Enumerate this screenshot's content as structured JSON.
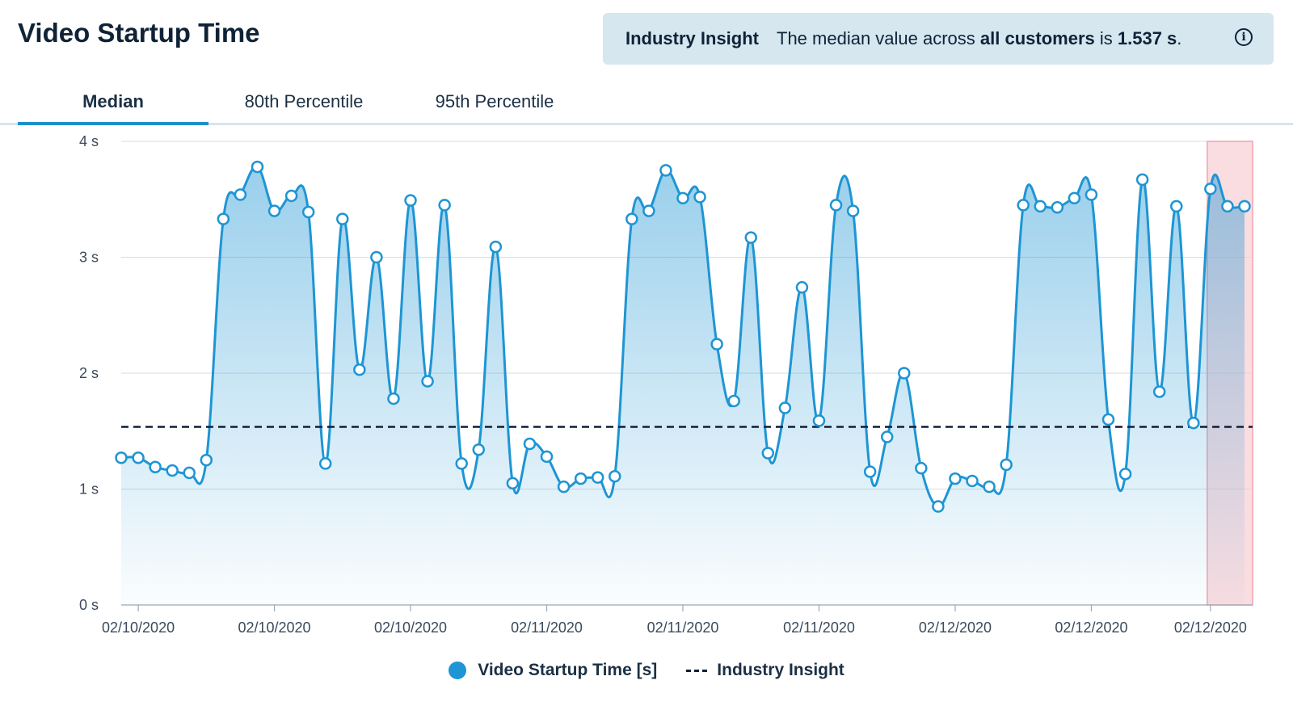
{
  "page": {
    "title": "Video Startup Time"
  },
  "insight": {
    "label": "Industry Insight",
    "text_prefix": "The median value across ",
    "text_bold": "all customers",
    "text_mid": " is ",
    "value": "1.537 s",
    "text_suffix": ".",
    "icon": "info-icon"
  },
  "tabs": [
    {
      "label": "Median",
      "active": true
    },
    {
      "label": "80th Percentile",
      "active": false
    },
    {
      "label": "95th Percentile",
      "active": false
    }
  ],
  "legend": {
    "series_label": "Video Startup Time [s]",
    "reference_label": "Industry Insight"
  },
  "colors": {
    "series": "#1e95d4",
    "reference": "#0f1f3a",
    "highlight": "#f7c6cd",
    "tab_active": "#1f8ecf"
  },
  "chart_data": {
    "type": "area",
    "ylim": [
      0,
      4
    ],
    "y_ticks": [
      "0 s",
      "1 s",
      "2 s",
      "3 s",
      "4 s"
    ],
    "x_tick_labels": [
      "02/10/2020",
      "02/10/2020",
      "02/10/2020",
      "02/11/2020",
      "02/11/2020",
      "02/11/2020",
      "02/12/2020",
      "02/12/2020",
      "02/12/2020"
    ],
    "x_tick_indices": [
      1,
      9,
      17,
      25,
      33,
      41,
      49,
      57,
      64
    ],
    "reference_value": 1.537,
    "highlight_last_index": 64,
    "grid": true,
    "legend_position": "bottom",
    "series": [
      {
        "name": "Video Startup Time [s]",
        "values": [
          1.27,
          1.27,
          1.19,
          1.16,
          1.14,
          1.25,
          3.33,
          3.54,
          3.78,
          3.4,
          3.53,
          3.39,
          1.22,
          3.33,
          2.03,
          3.0,
          1.78,
          3.49,
          1.93,
          3.45,
          1.22,
          1.34,
          3.09,
          1.05,
          1.39,
          1.28,
          1.02,
          1.09,
          1.1,
          1.11,
          3.33,
          3.4,
          3.75,
          3.51,
          3.52,
          2.25,
          1.76,
          3.17,
          1.31,
          1.7,
          2.74,
          1.59,
          3.45,
          3.4,
          1.15,
          1.45,
          2.0,
          1.18,
          0.85,
          1.09,
          1.07,
          1.02,
          1.21,
          3.45,
          3.44,
          3.43,
          3.51,
          3.54,
          1.6,
          1.13,
          3.67,
          1.84,
          3.44,
          1.57,
          3.59,
          3.44,
          3.44
        ]
      }
    ]
  }
}
